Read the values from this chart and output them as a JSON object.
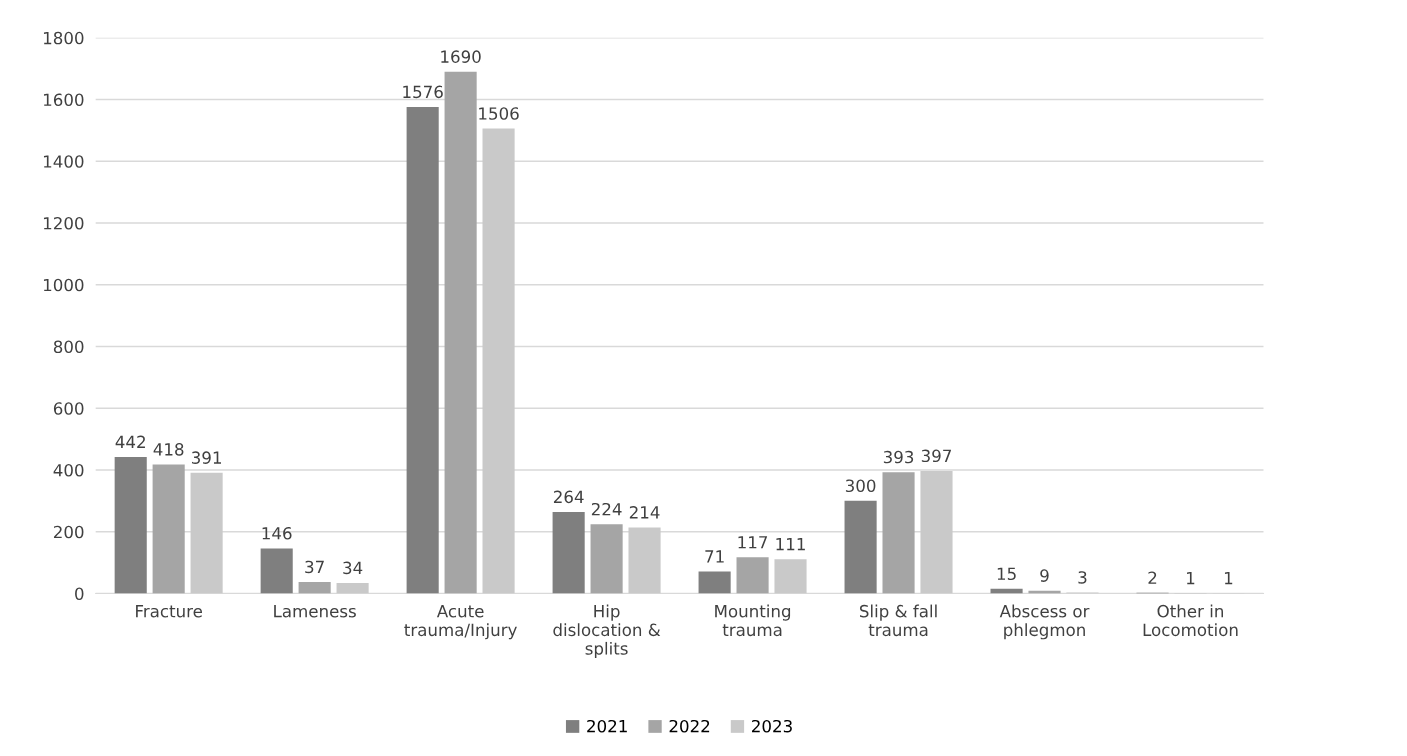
{
  "chart_data": {
    "type": "bar",
    "categories": [
      "Fracture",
      "Lameness",
      "Acute trauma/Injury",
      "Hip dislocation & splits",
      "Mounting trauma",
      "Slip & fall trauma",
      "Abscess or phlegmon",
      "Other in Locomotion"
    ],
    "series": [
      {
        "name": "2021",
        "color": "#7f7f7f",
        "values": [
          442,
          146,
          1576,
          264,
          71,
          300,
          15,
          2
        ]
      },
      {
        "name": "2022",
        "color": "#a5a5a5",
        "values": [
          418,
          37,
          1690,
          224,
          117,
          393,
          9,
          1
        ]
      },
      {
        "name": "2023",
        "color": "#c9c9c9",
        "values": [
          391,
          34,
          1506,
          214,
          111,
          397,
          3,
          1
        ]
      }
    ],
    "ylim": [
      0,
      1800
    ],
    "yticks": [
      0,
      200,
      400,
      600,
      800,
      1000,
      1200,
      1400,
      1600,
      1800
    ],
    "grid": "y",
    "legend": "bottom",
    "data_labels": true
  }
}
